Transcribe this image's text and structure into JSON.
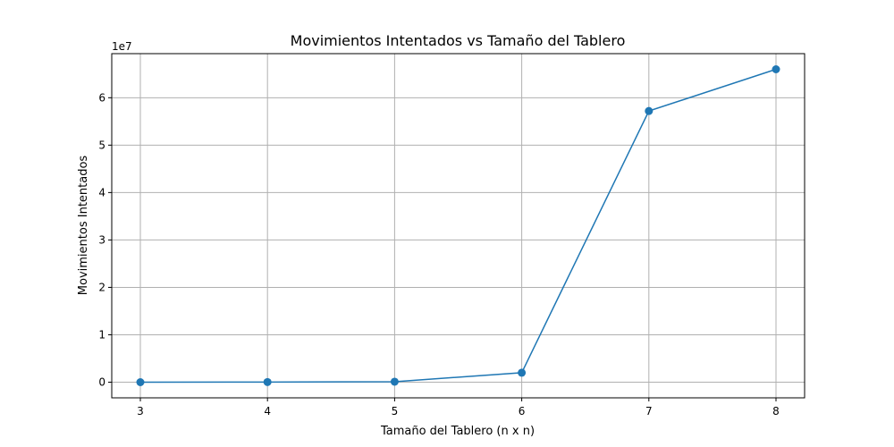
{
  "chart_data": {
    "type": "line",
    "title": "Movimientos Intentados vs Tamaño del Tablero",
    "xlabel": "Tamaño del Tablero (n x n)",
    "ylabel": "Movimientos Intentados",
    "y_offset_label": "1e7",
    "x": [
      3,
      4,
      5,
      6,
      7,
      8
    ],
    "series": [
      {
        "name": "",
        "color": "#1f77b4",
        "marker": "circle",
        "values": [
          0,
          30000,
          100000,
          2000000,
          57200000,
          66000000
        ]
      }
    ],
    "xlim": [
      2.775,
      8.225
    ],
    "ylim": [
      -3300000,
      69300000
    ],
    "x_ticks": [
      3,
      4,
      5,
      6,
      7,
      8
    ],
    "y_ticks": [
      0,
      10000000,
      20000000,
      30000000,
      40000000,
      50000000,
      60000000
    ],
    "y_tick_labels": [
      "0",
      "1",
      "2",
      "3",
      "4",
      "5",
      "6"
    ],
    "grid": true
  }
}
